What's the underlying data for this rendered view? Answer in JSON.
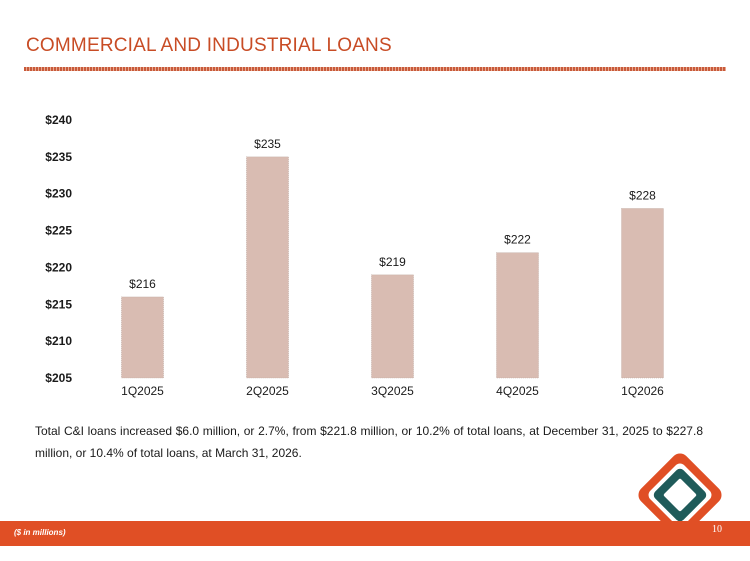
{
  "page": {
    "title": "COMMERCIAL AND INDUSTRIAL LOANS",
    "summary": "Total C&I loans increased $6.0 million, or 2.7%, from $221.8 million, or 10.2% of total loans, at December 31, 2025 to $227.8 million, or 10.4% of total loans, at March 31, 2026.",
    "footnote": "($ in millions)",
    "page_number": "10"
  },
  "colors": {
    "title": "#c84c25",
    "bar": "#d9bcb2",
    "footer": "#e04f25",
    "logo_orange": "#e04f25",
    "logo_teal": "#1f5b5a"
  },
  "chart_data": {
    "type": "bar",
    "categories": [
      "1Q2025",
      "2Q2025",
      "3Q2025",
      "4Q2025",
      "1Q2026"
    ],
    "values": [
      216,
      235,
      219,
      222,
      228
    ],
    "data_labels": [
      "$216",
      "$235",
      "$219",
      "$222",
      "$228"
    ],
    "yticks": [
      "$205",
      "$210",
      "$215",
      "$220",
      "$225",
      "$230",
      "$235",
      "$240"
    ],
    "ylim": [
      205,
      240
    ],
    "title": "",
    "xlabel": "",
    "ylabel": "",
    "grid": false,
    "legend": "none"
  }
}
